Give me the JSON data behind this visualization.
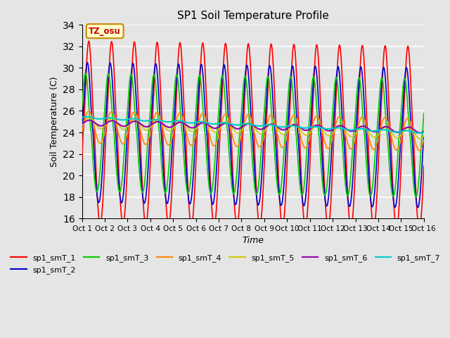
{
  "title": "SP1 Soil Temperature Profile",
  "xlabel": "Time",
  "ylabel": "Soil Temperature (C)",
  "ylim": [
    16,
    34
  ],
  "xlim": [
    0,
    15
  ],
  "tz_label": "TZ_osu",
  "series_colors": {
    "sp1_smT_1": "#ff0000",
    "sp1_smT_2": "#0000cc",
    "sp1_smT_3": "#00cc00",
    "sp1_smT_4": "#ff8800",
    "sp1_smT_5": "#cccc00",
    "sp1_smT_6": "#9900aa",
    "sp1_smT_7": "#00cccc"
  },
  "xtick_labels": [
    "Oct 1",
    "Oct 2",
    "Oct 3",
    "Oct 4",
    "Oct 5",
    "Oct 6",
    "Oct 7",
    "Oct 8",
    "Oct 9",
    "Oct 10",
    "Oct 11",
    "Oct 12",
    "Oct 13",
    "Oct 14",
    "Oct 15",
    "Oct 16"
  ],
  "background_color": "#e5e5e5",
  "grid_color": "#ffffff",
  "figsize": [
    6.4,
    4.8
  ],
  "dpi": 100
}
